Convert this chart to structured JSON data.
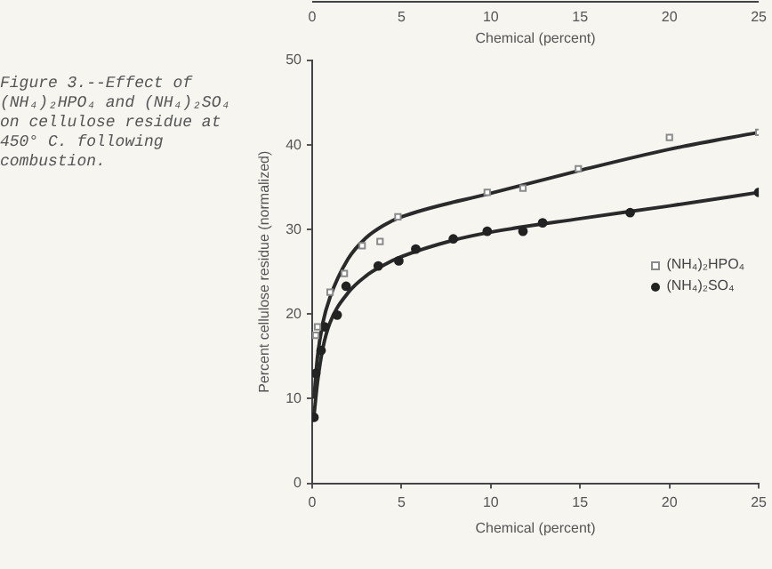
{
  "chart_data": {
    "type": "scatter",
    "xlabel": "Chemical (percent)",
    "ylabel": "Percent cellulose residue (normalized)",
    "x2label": "Chemical (percent)",
    "xlim": [
      0,
      25
    ],
    "xticks": [
      0,
      5,
      10,
      15,
      20,
      25
    ],
    "x2lim": [
      0,
      25
    ],
    "x2ticks": [
      0,
      5,
      10,
      15,
      20,
      25
    ],
    "ylim": [
      0,
      50
    ],
    "yticks": [
      0,
      10,
      20,
      30,
      40,
      50
    ],
    "legend": "right",
    "annotations": [
      "Figure 3.--Effect of (NH₄)₂HPO₄ and (NH₄)₂SO₄ on cellulose residue at 450° C. following combustion."
    ],
    "series": [
      {
        "name": "(NH₄)₂HPO₄",
        "marker": "square",
        "color": "#8a8a8a",
        "x": [
          0.2,
          0.3,
          1.0,
          1.8,
          2.8,
          3.8,
          4.8,
          9.8,
          11.8,
          14.9,
          20.0,
          25.0
        ],
        "values": [
          17.5,
          18.5,
          22.6,
          24.8,
          28.1,
          28.6,
          31.5,
          34.4,
          34.9,
          37.2,
          40.9,
          41.5
        ]
      },
      {
        "name": "(NH₄)₂SO₄",
        "marker": "circle",
        "color": "#222222",
        "x": [
          0.1,
          0.2,
          0.5,
          0.7,
          1.4,
          1.9,
          3.7,
          4.85,
          5.8,
          7.9,
          9.8,
          11.8,
          12.9,
          17.8,
          25.0
        ],
        "values": [
          7.8,
          13.0,
          15.7,
          18.5,
          19.9,
          23.3,
          25.7,
          26.3,
          27.7,
          28.9,
          29.8,
          29.8,
          30.8,
          32.0,
          34.4
        ]
      },
      {
        "type": "line",
        "marker": "none",
        "color": "#2a2a2a",
        "x": [
          0.1,
          0.3,
          0.6,
          1,
          2,
          3,
          4,
          5,
          10,
          15,
          20,
          25
        ],
        "values": [
          10,
          15,
          19,
          22,
          26.5,
          29,
          30.5,
          31.5,
          34.3,
          37,
          39.5,
          41.5
        ]
      },
      {
        "type": "line",
        "marker": "none",
        "color": "#2a2a2a",
        "x": [
          0.1,
          0.3,
          0.6,
          1,
          2,
          3,
          4,
          5,
          8,
          10,
          15,
          20,
          25
        ],
        "values": [
          8,
          12,
          16,
          19,
          22.5,
          24.5,
          25.8,
          26.8,
          28.8,
          29.7,
          31.3,
          32.8,
          34.4
        ]
      }
    ]
  }
}
